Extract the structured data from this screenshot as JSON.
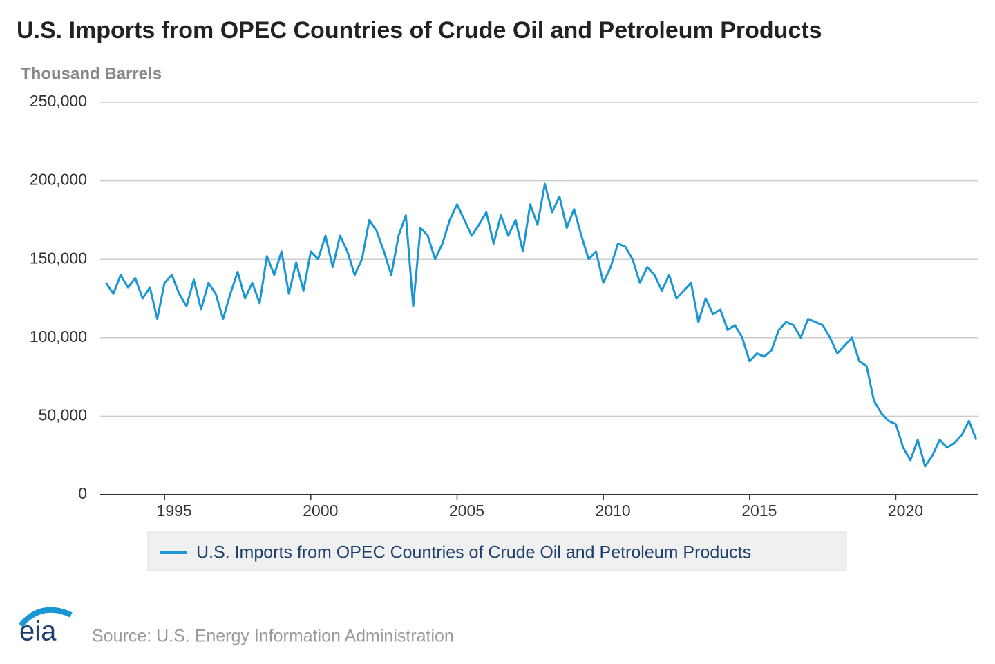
{
  "chart_data": {
    "type": "line",
    "title": "U.S. Imports from OPEC Countries of Crude Oil and Petroleum Products",
    "y_label": "Thousand Barrels",
    "source": "Source: U.S. Energy Information Administration",
    "logo": "eia",
    "x": [
      1993,
      1993.25,
      1993.5,
      1993.75,
      1994,
      1994.25,
      1994.5,
      1994.75,
      1995,
      1995.25,
      1995.5,
      1995.75,
      1996,
      1996.25,
      1996.5,
      1996.75,
      1997,
      1997.25,
      1997.5,
      1997.75,
      1998,
      1998.25,
      1998.5,
      1998.75,
      1999,
      1999.25,
      1999.5,
      1999.75,
      2000,
      2000.25,
      2000.5,
      2000.75,
      2001,
      2001.25,
      2001.5,
      2001.75,
      2002,
      2002.25,
      2002.5,
      2002.75,
      2003,
      2003.25,
      2003.5,
      2003.75,
      2004,
      2004.25,
      2004.5,
      2004.75,
      2005,
      2005.25,
      2005.5,
      2005.75,
      2006,
      2006.25,
      2006.5,
      2006.75,
      2007,
      2007.25,
      2007.5,
      2007.75,
      2008,
      2008.25,
      2008.5,
      2008.75,
      2009,
      2009.25,
      2009.5,
      2009.75,
      2010,
      2010.25,
      2010.5,
      2010.75,
      2011,
      2011.25,
      2011.5,
      2011.75,
      2012,
      2012.25,
      2012.5,
      2012.75,
      2013,
      2013.25,
      2013.5,
      2013.75,
      2014,
      2014.25,
      2014.5,
      2014.75,
      2015,
      2015.25,
      2015.5,
      2015.75,
      2016,
      2016.25,
      2016.5,
      2016.75,
      2017,
      2017.25,
      2017.5,
      2017.75,
      2018,
      2018.25,
      2018.5,
      2018.75,
      2019,
      2019.25,
      2019.5,
      2019.75,
      2020,
      2020.25,
      2020.5,
      2020.75,
      2021,
      2021.25,
      2021.5,
      2021.75,
      2022,
      2022.25,
      2022.5,
      2022.75
    ],
    "series": [
      {
        "name": "U.S. Imports from OPEC Countries of Crude Oil and Petroleum Products",
        "color": "#1a96d4",
        "values": [
          135000,
          128000,
          140000,
          132000,
          138000,
          125000,
          132000,
          112000,
          135000,
          140000,
          128000,
          120000,
          137000,
          118000,
          135000,
          128000,
          112000,
          128000,
          142000,
          125000,
          135000,
          122000,
          152000,
          140000,
          155000,
          128000,
          148000,
          130000,
          155000,
          150000,
          165000,
          145000,
          165000,
          155000,
          140000,
          150000,
          175000,
          168000,
          155000,
          140000,
          165000,
          178000,
          120000,
          170000,
          165000,
          150000,
          160000,
          175000,
          185000,
          175000,
          165000,
          172000,
          180000,
          160000,
          178000,
          165000,
          175000,
          155000,
          185000,
          172000,
          198000,
          180000,
          190000,
          170000,
          182000,
          165000,
          150000,
          155000,
          135000,
          145000,
          160000,
          158000,
          150000,
          135000,
          145000,
          140000,
          130000,
          140000,
          125000,
          130000,
          135000,
          110000,
          125000,
          115000,
          118000,
          105000,
          108000,
          100000,
          85000,
          90000,
          88000,
          92000,
          105000,
          110000,
          108000,
          100000,
          112000,
          110000,
          108000,
          100000,
          90000,
          95000,
          100000,
          85000,
          82000,
          60000,
          52000,
          47000,
          45000,
          30000,
          22000,
          35000,
          18000,
          25000,
          35000,
          30000,
          33000,
          38000,
          47000,
          35000
        ]
      }
    ],
    "xlim": [
      1992.8,
      2022.8
    ],
    "xticks": [
      1995,
      2000,
      2005,
      2010,
      2015,
      2020
    ],
    "ylim": [
      0,
      250000
    ],
    "yticks": [
      0,
      {
        "value": 50000,
        "label": "50,000"
      },
      {
        "value": 100000,
        "label": "100,000"
      },
      {
        "value": 150000,
        "label": "150,000"
      },
      {
        "value": 200000,
        "label": "200,000"
      },
      {
        "value": 250000,
        "label": "250,000"
      }
    ],
    "grid": true
  }
}
